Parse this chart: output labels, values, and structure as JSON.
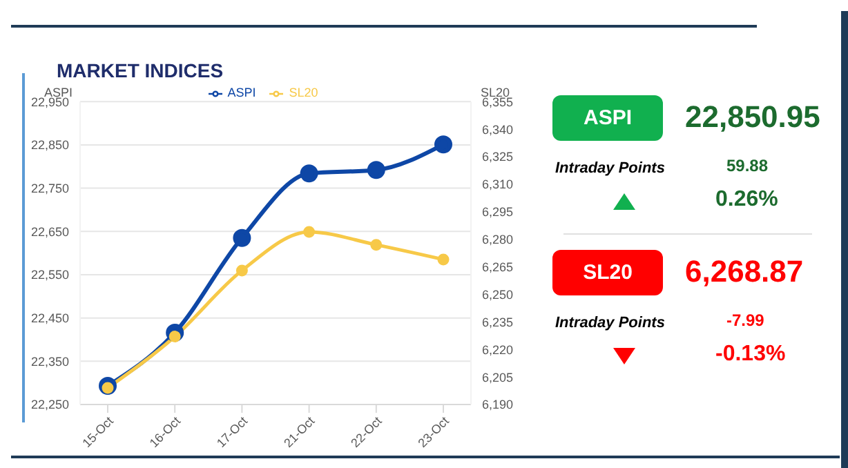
{
  "chart_data": [
    {
      "type": "line",
      "title": "MARKET INDICES",
      "ylabel": "ASPI",
      "y2label": "SL20",
      "categories": [
        "15-Oct",
        "16-Oct",
        "17-Oct",
        "21-Oct",
        "22-Oct",
        "23-Oct"
      ],
      "series": [
        {
          "name": "ASPI",
          "color": "#0e47a6",
          "values": [
            22293,
            22416,
            22635,
            22784,
            22792,
            22851
          ]
        },
        {
          "name": "SL20",
          "color": "#f7c948",
          "axis": "y2",
          "values": [
            6199,
            6227,
            6263,
            6284,
            6277,
            6269
          ]
        }
      ],
      "ylim": [
        22250,
        22950
      ],
      "yticks": [
        {
          "value": 22250,
          "label": "22,250"
        },
        {
          "value": 22350,
          "label": "22,350"
        },
        {
          "value": 22450,
          "label": "22,450"
        },
        {
          "value": 22550,
          "label": "22,550"
        },
        {
          "value": 22650,
          "label": "22,650"
        },
        {
          "value": 22750,
          "label": "22,750"
        },
        {
          "value": 22850,
          "label": "22,850"
        },
        {
          "value": 22950,
          "label": "22,950"
        }
      ],
      "y2lim": [
        6190,
        6355
      ],
      "y2ticks": [
        {
          "value": 6190,
          "label": "6,190"
        },
        {
          "value": 6205,
          "label": "6,205"
        },
        {
          "value": 6220,
          "label": "6,220"
        },
        {
          "value": 6235,
          "label": "6,235"
        },
        {
          "value": 6250,
          "label": "6,250"
        },
        {
          "value": 6265,
          "label": "6,265"
        },
        {
          "value": 6280,
          "label": "6,280"
        },
        {
          "value": 6295,
          "label": "6,295"
        },
        {
          "value": 6310,
          "label": "6,310"
        },
        {
          "value": 6325,
          "label": "6,325"
        },
        {
          "value": 6340,
          "label": "6,340"
        },
        {
          "value": 6355,
          "label": "6,355"
        }
      ],
      "grid": "y",
      "legend": "top",
      "marker": "circle",
      "line_style": "solid"
    },
    {
      "type": "other",
      "annotations": [
        "ASPI",
        "22,850.95",
        "Intraday Points",
        "59.88",
        "0.26%",
        "SL20",
        "6,268.87",
        "Intraday Points",
        "-7.99",
        "-0.13%"
      ]
    }
  ]
}
